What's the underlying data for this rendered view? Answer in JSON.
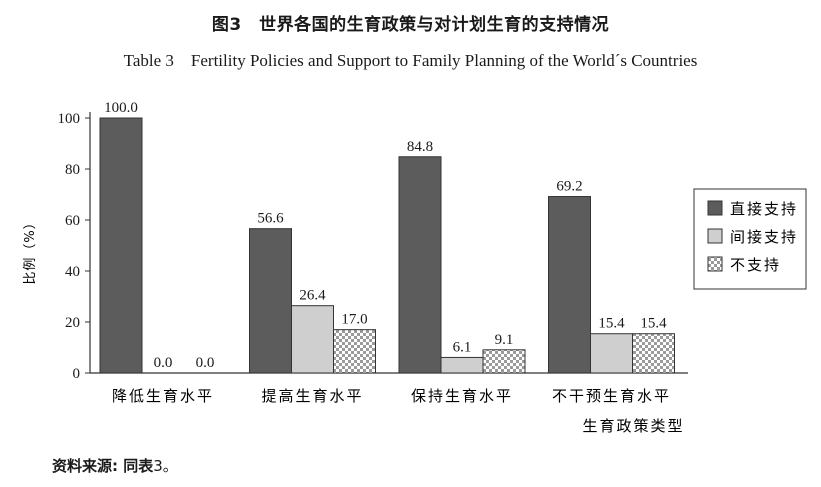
{
  "figure": {
    "title_cn": "图3　世界各国的生育政策与对计划生育的支持情况",
    "title_en": "Table 3　Fertility Policies and Support to Family Planning of the World´s Countries",
    "source_label": "资料来源: 同表",
    "source_value": "3。"
  },
  "colors": {
    "direct": "#5c5c5c",
    "indirect": "#cfcfcf",
    "none_bg": "#ffffff",
    "none_pattern": "#9a9a9a",
    "axis": "#333333"
  },
  "chart_data": {
    "type": "bar",
    "ylabel": "比例（%）",
    "ylim": [
      0,
      100
    ],
    "yticks": [
      0,
      20,
      40,
      60,
      80,
      100
    ],
    "categories": [
      [
        "降低生育水平"
      ],
      [
        "提高生育水平"
      ],
      [
        "保持生育水平"
      ],
      [
        "不干预生育水平",
        "生育政策类型"
      ]
    ],
    "series": [
      {
        "name": "直接支持",
        "values": [
          100.0,
          56.6,
          84.8,
          69.2
        ],
        "labels": [
          "100.0",
          "56.6",
          "84.8",
          "69.2"
        ]
      },
      {
        "name": "间接支持",
        "values": [
          0.0,
          26.4,
          6.1,
          15.4
        ],
        "labels": [
          "0.0",
          "26.4",
          "6.1",
          "15.4"
        ]
      },
      {
        "name": "不支持",
        "values": [
          0.0,
          17.0,
          9.1,
          15.4
        ],
        "labels": [
          "0.0",
          "17.0",
          "9.1",
          "15.4"
        ]
      }
    ],
    "legend_position": "right",
    "grid": false
  }
}
